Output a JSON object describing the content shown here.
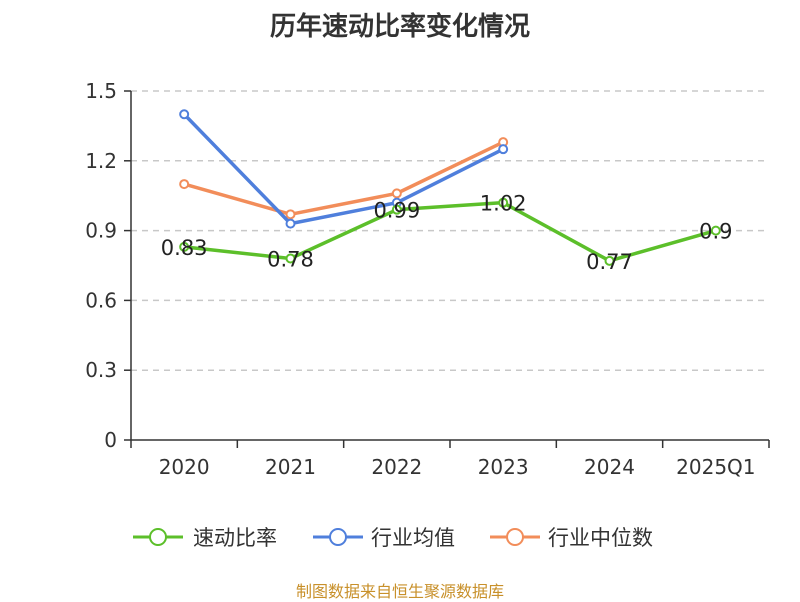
{
  "chart_data": {
    "type": "line",
    "title": "历年速动比率变化情况",
    "categories": [
      "2020",
      "2021",
      "2022",
      "2023",
      "2024",
      "2025Q1"
    ],
    "ylim": [
      0,
      1.5
    ],
    "yticks": [
      "0",
      "0.3",
      "0.6",
      "0.9",
      "1.2",
      "1.5"
    ],
    "ytick_values": [
      0,
      0.3,
      0.6,
      0.9,
      1.2,
      1.5
    ],
    "grid": true,
    "legend_position": "bottom",
    "series": [
      {
        "name": "速动比率",
        "color": "#5cbf2a",
        "values": [
          0.83,
          0.78,
          0.99,
          1.02,
          0.77,
          0.9
        ],
        "labels": [
          "0.83",
          "0.78",
          "0.99",
          "1.02",
          "0.77",
          "0.9"
        ]
      },
      {
        "name": "行业均值",
        "color": "#4f7fdc",
        "values": [
          1.4,
          0.93,
          1.02,
          1.25,
          null,
          null
        ]
      },
      {
        "name": "行业中位数",
        "color": "#f28d5a",
        "values": [
          1.1,
          0.97,
          1.06,
          1.28,
          null,
          null
        ]
      }
    ]
  },
  "source_text": "制图数据来自恒生聚源数据库"
}
